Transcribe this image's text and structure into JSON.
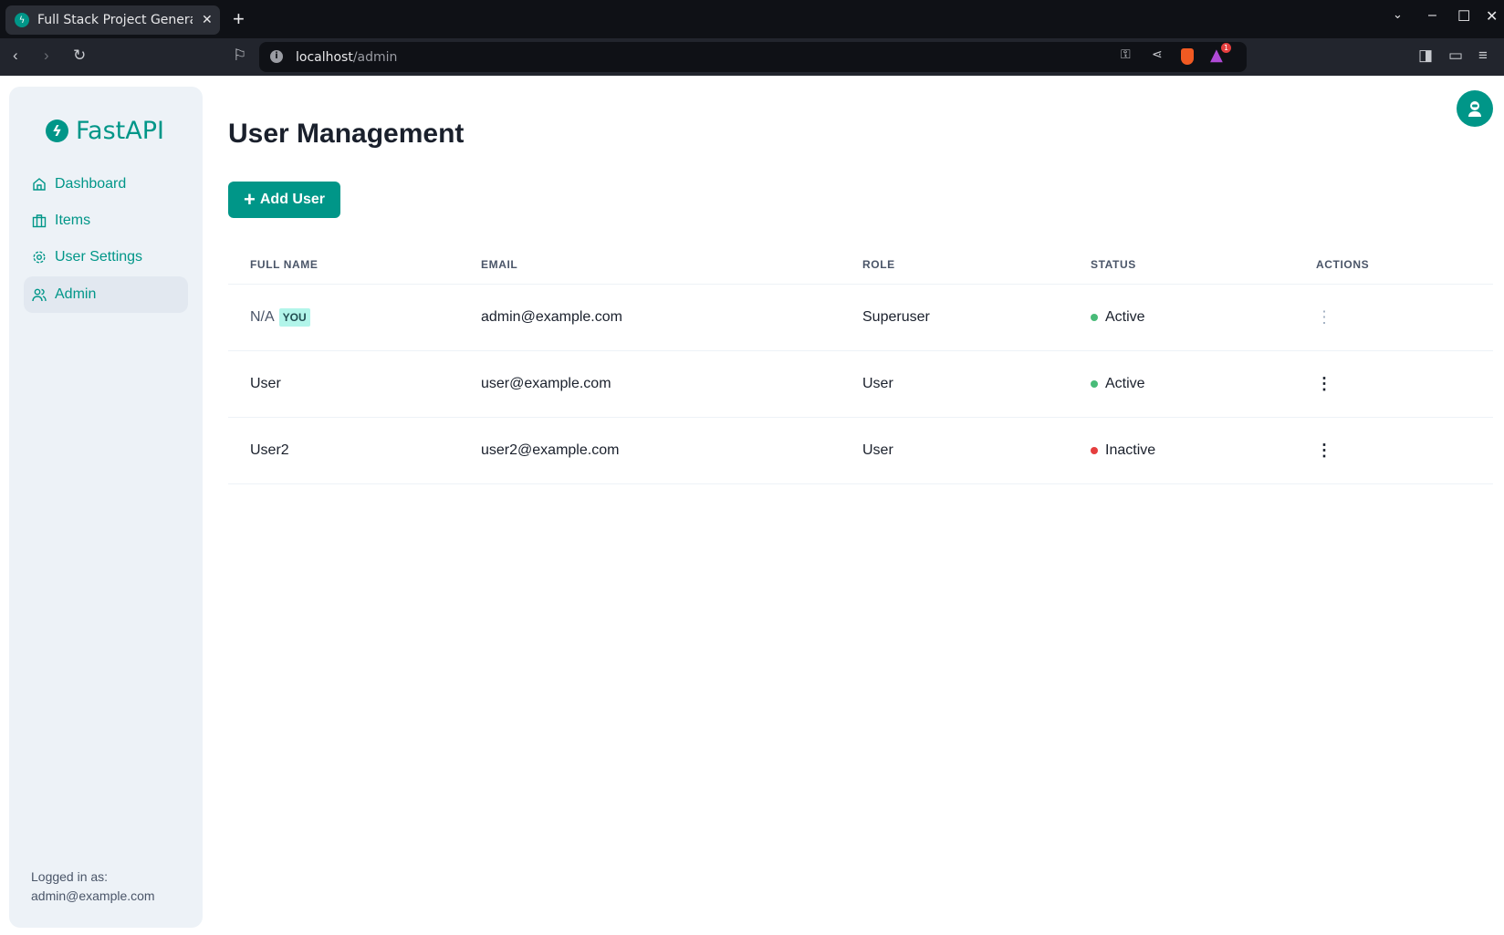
{
  "browser": {
    "tab_title": "Full Stack Project Generator",
    "url_host": "localhost",
    "url_path": "/admin",
    "notification_count": "1"
  },
  "sidebar": {
    "logo": "FastAPI",
    "items": [
      {
        "label": "Dashboard",
        "icon": "home-icon"
      },
      {
        "label": "Items",
        "icon": "briefcase-icon"
      },
      {
        "label": "User Settings",
        "icon": "gear-icon"
      },
      {
        "label": "Admin",
        "icon": "users-icon",
        "active": true
      }
    ],
    "logged_in_label": "Logged in as:",
    "logged_in_email": "admin@example.com"
  },
  "main": {
    "title": "User Management",
    "add_button": "Add User",
    "columns": [
      "FULL NAME",
      "EMAIL",
      "ROLE",
      "STATUS",
      "ACTIONS"
    ],
    "rows": [
      {
        "full_name": "N/A",
        "badge": "YOU",
        "email": "admin@example.com",
        "role": "Superuser",
        "status": "Active",
        "status_color": "#48bb78"
      },
      {
        "full_name": "User",
        "email": "user@example.com",
        "role": "User",
        "status": "Active",
        "status_color": "#48bb78"
      },
      {
        "full_name": "User2",
        "email": "user2@example.com",
        "role": "User",
        "status": "Inactive",
        "status_color": "#e53e3e"
      }
    ]
  },
  "colors": {
    "accent": "#009688"
  }
}
